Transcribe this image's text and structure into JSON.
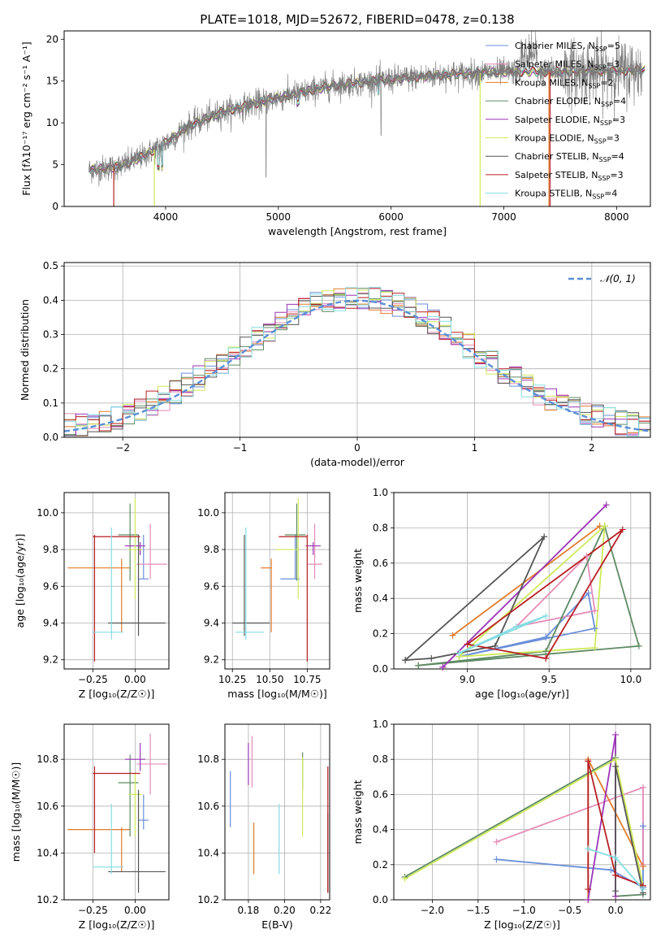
{
  "figure": {
    "title": "PLATE=1018, MJD=52672, FIBERID=0478, z=0.138"
  },
  "colors": {
    "Chabrier MILES": "#6a8fd9",
    "Salpeter MILES": "#e58cb7",
    "Kroupa MILES": "#e07b2c",
    "Chabrier ELODIE": "#5e8a63",
    "Salpeter ELODIE": "#9a35b5",
    "Kroupa ELODIE": "#cfea5a",
    "Chabrier STELIB": "#555555",
    "Salpeter STELIB": "#b81f24",
    "Kroupa STELIB": "#86dde2"
  },
  "chart_data": [
    {
      "id": "spectrum",
      "type": "line",
      "xlabel": "wavelength [Angstrom, rest frame]",
      "ylabel": "Flux [fλ10⁻¹⁷ erg cm⁻² s⁻¹ A⁻¹]",
      "xlim": [
        3100,
        8300
      ],
      "ylim": [
        0,
        21
      ],
      "xticks": [
        4000,
        5000,
        6000,
        7000,
        8000
      ],
      "yticks": [
        0,
        5,
        10,
        15,
        20
      ],
      "legend_position": "top-right",
      "series": [
        {
          "name": "Chabrier MILES",
          "nssp": "5"
        },
        {
          "name": "Salpeter MILES",
          "nssp": "3"
        },
        {
          "name": "Kroupa MILES",
          "nssp": "2"
        },
        {
          "name": "Chabrier ELODIE",
          "nssp": "4"
        },
        {
          "name": "Salpeter ELODIE",
          "nssp": "3"
        },
        {
          "name": "Kroupa ELODIE",
          "nssp": "3"
        },
        {
          "name": "Chabrier STELIB",
          "nssp": "4"
        },
        {
          "name": "Salpeter STELIB",
          "nssp": "3"
        },
        {
          "name": "Kroupa STELIB",
          "nssp": "4"
        }
      ],
      "continuum": {
        "x": [
          3300,
          3600,
          3800,
          4000,
          4200,
          4500,
          5000,
          5500,
          6000,
          6500,
          7000,
          7500,
          8000,
          8250
        ],
        "y": [
          4.3,
          4.8,
          6.0,
          7.6,
          9.6,
          11.3,
          13.0,
          14.5,
          15.2,
          15.8,
          16.1,
          16.1,
          16.2,
          16.3
        ]
      }
    },
    {
      "id": "residuals",
      "type": "histogram",
      "xlabel": "(data-model)/error",
      "ylabel": "Normed distribution",
      "xlim": [
        -2.5,
        2.5
      ],
      "ylim": [
        0,
        0.51
      ],
      "xticks": [
        -2,
        -1,
        0,
        1,
        2
      ],
      "yticks": [
        0.0,
        0.1,
        0.2,
        0.3,
        0.4,
        0.5
      ],
      "legend": {
        "label": "𝒩(0, 1)",
        "position": "top-right"
      },
      "bin_width": 0.1
    },
    {
      "id": "age_vs_z",
      "type": "errorbar",
      "xlabel": "Z [log₁₀(Z/Z☉)]",
      "ylabel": "age  [log₁₀(age/yr)]",
      "xlim": [
        -0.42,
        0.2
      ],
      "ylim": [
        9.15,
        10.11
      ],
      "xticks": [
        -0.25,
        0.0
      ],
      "xtick_labels": [
        "−0.25",
        "0.00"
      ],
      "yticks": [
        9.2,
        9.4,
        9.6,
        9.8,
        10.0
      ],
      "points": [
        {
          "model": "Chabrier MILES",
          "x": 0.05,
          "xerr": [
            0.03,
            0.03
          ],
          "y": 9.64,
          "yerr": [
            0.0,
            0.24
          ]
        },
        {
          "model": "Salpeter MILES",
          "x": 0.09,
          "xerr": [
            0.08,
            0.1
          ],
          "y": 9.72,
          "yerr": [
            0.08,
            0.22
          ]
        },
        {
          "model": "Kroupa MILES",
          "x": -0.08,
          "xerr": [
            0.32,
            0.05
          ],
          "y": 9.7,
          "yerr": [
            0.35,
            0.05
          ]
        },
        {
          "model": "Chabrier ELODIE",
          "x": -0.03,
          "xerr": [
            0.07,
            0.05
          ],
          "y": 9.88,
          "yerr": [
            0.25,
            0.17
          ]
        },
        {
          "model": "Salpeter ELODIE",
          "x": 0.03,
          "xerr": [
            0.09,
            0.03
          ],
          "y": 9.82,
          "yerr": [
            0.05,
            0.02
          ]
        },
        {
          "model": "Kroupa ELODIE",
          "x": 0.0,
          "xerr": [
            0.04,
            0.04
          ],
          "y": 9.8,
          "yerr": [
            0.27,
            0.28
          ]
        },
        {
          "model": "Chabrier STELIB",
          "x": 0.02,
          "xerr": [
            0.18,
            0.16
          ],
          "y": 9.4,
          "yerr": [
            0.07,
            0.48
          ]
        },
        {
          "model": "Salpeter STELIB",
          "x": -0.24,
          "xerr": [
            0.01,
            0.27
          ],
          "y": 9.87,
          "yerr": [
            0.68,
            0.01
          ]
        },
        {
          "model": "Kroupa STELIB",
          "x": -0.14,
          "xerr": [
            0.11,
            0.07
          ],
          "y": 9.35,
          "yerr": [
            0.04,
            0.57
          ]
        }
      ]
    },
    {
      "id": "age_vs_mass",
      "type": "errorbar",
      "xlabel": "mass [log₁₀(M/M☉)]",
      "ylabel": "",
      "xlim": [
        10.2,
        10.9
      ],
      "ylim": [
        9.15,
        10.11
      ],
      "xticks": [
        10.25,
        10.5,
        10.75
      ],
      "yticks": [
        9.2,
        9.4,
        9.6,
        9.8,
        10.0
      ],
      "points": [
        {
          "model": "Chabrier MILES",
          "x": 10.67,
          "xerr": [
            0.1,
            0.03
          ],
          "y": 9.64,
          "yerr": [
            0.0,
            0.24
          ]
        },
        {
          "model": "Salpeter MILES",
          "x": 10.8,
          "xerr": [
            0.05,
            0.05
          ],
          "y": 9.72,
          "yerr": [
            0.08,
            0.22
          ]
        },
        {
          "model": "Kroupa MILES",
          "x": 10.51,
          "xerr": [
            0.07,
            0.0
          ],
          "y": 9.7,
          "yerr": [
            0.35,
            0.05
          ]
        },
        {
          "model": "Chabrier ELODIE",
          "x": 10.68,
          "xerr": [
            0.08,
            0.06
          ],
          "y": 9.88,
          "yerr": [
            0.25,
            0.17
          ]
        },
        {
          "model": "Salpeter ELODIE",
          "x": 10.79,
          "xerr": [
            0.05,
            0.05
          ],
          "y": 9.82,
          "yerr": [
            0.05,
            0.02
          ]
        },
        {
          "model": "Kroupa ELODIE",
          "x": 10.69,
          "xerr": [
            0.15,
            0.0
          ],
          "y": 9.8,
          "yerr": [
            0.27,
            0.28
          ]
        },
        {
          "model": "Chabrier STELIB",
          "x": 10.33,
          "xerr": [
            0.08,
            0.17
          ],
          "y": 9.4,
          "yerr": [
            0.07,
            0.48
          ]
        },
        {
          "model": "Salpeter STELIB",
          "x": 10.75,
          "xerr": [
            0.19,
            0.0
          ],
          "y": 9.87,
          "yerr": [
            0.68,
            0.01
          ]
        },
        {
          "model": "Kroupa STELIB",
          "x": 10.34,
          "xerr": [
            0.07,
            0.12
          ],
          "y": 9.35,
          "yerr": [
            0.04,
            0.57
          ]
        }
      ]
    },
    {
      "id": "weight_vs_age",
      "type": "line",
      "xlabel": "age  [log₁₀(age/yr)]",
      "ylabel": "mass weight",
      "xlim": [
        8.55,
        10.12
      ],
      "ylim": [
        0,
        1.0
      ],
      "xticks": [
        9.0,
        9.5,
        10.0
      ],
      "yticks": [
        0.0,
        0.2,
        0.4,
        0.6,
        0.8,
        1.0
      ],
      "series": [
        {
          "model": "Chabrier MILES",
          "x": [
            8.95,
            9.48,
            9.74,
            9.78,
            8.95
          ],
          "y": [
            0.07,
            0.18,
            0.43,
            0.23,
            0.07
          ]
        },
        {
          "model": "Salpeter MILES",
          "x": [
            9.73,
            9.78,
            9.3,
            9.73
          ],
          "y": [
            0.64,
            0.33,
            0.24,
            0.64
          ]
        },
        {
          "model": "Kroupa MILES",
          "x": [
            8.91,
            9.81
          ],
          "y": [
            0.19,
            0.81
          ]
        },
        {
          "model": "Chabrier ELODIE",
          "x": [
            8.7,
            9.48,
            9.84,
            10.05,
            8.7
          ],
          "y": [
            0.02,
            0.1,
            0.81,
            0.13,
            0.02
          ]
        },
        {
          "model": "Salpeter ELODIE",
          "x": [
            8.85,
            9.85,
            8.85
          ],
          "y": [
            0.01,
            0.93,
            0.01
          ]
        },
        {
          "model": "Kroupa ELODIE",
          "x": [
            8.95,
            9.78,
            9.84,
            8.95
          ],
          "y": [
            0.07,
            0.12,
            0.81,
            0.07
          ]
        },
        {
          "model": "Chabrier STELIB",
          "x": [
            8.62,
            8.78,
            9.17,
            9.47,
            8.62
          ],
          "y": [
            0.05,
            0.06,
            0.13,
            0.75,
            0.05
          ]
        },
        {
          "model": "Salpeter STELIB",
          "x": [
            9.0,
            9.48,
            9.95,
            9.0
          ],
          "y": [
            0.14,
            0.06,
            0.79,
            0.14
          ]
        },
        {
          "model": "Kroupa STELIB",
          "x": [
            8.95,
            9.3,
            9.48,
            8.95
          ],
          "y": [
            0.09,
            0.24,
            0.3,
            0.09
          ]
        }
      ]
    },
    {
      "id": "mass_vs_z",
      "type": "errorbar",
      "xlabel": "Z [log₁₀(Z/Z☉)]",
      "ylabel": "mass [log₁₀(M/M☉)]",
      "xlim": [
        -0.42,
        0.2
      ],
      "ylim": [
        10.2,
        10.95
      ],
      "xticks": [
        -0.25,
        0.0
      ],
      "xtick_labels": [
        "−0.25",
        "0.00"
      ],
      "yticks": [
        10.2,
        10.4,
        10.6,
        10.8
      ],
      "points": [
        {
          "model": "Chabrier MILES",
          "x": 0.05,
          "xerr": [
            0.03,
            0.03
          ],
          "y": 10.54,
          "yerr": [
            0.04,
            0.11
          ]
        },
        {
          "model": "Salpeter MILES",
          "x": 0.09,
          "xerr": [
            0.08,
            0.1
          ],
          "y": 10.78,
          "yerr": [
            0.13,
            0.13
          ]
        },
        {
          "model": "Kroupa MILES",
          "x": -0.08,
          "xerr": [
            0.32,
            0.05
          ],
          "y": 10.5,
          "yerr": [
            0.18,
            0.01
          ]
        },
        {
          "model": "Chabrier ELODIE",
          "x": -0.03,
          "xerr": [
            0.07,
            0.05
          ],
          "y": 10.7,
          "yerr": [
            0.23,
            0.12
          ]
        },
        {
          "model": "Salpeter ELODIE",
          "x": 0.03,
          "xerr": [
            0.09,
            0.03
          ],
          "y": 10.8,
          "yerr": [
            0.05,
            0.07
          ]
        },
        {
          "model": "Kroupa ELODIE",
          "x": 0.0,
          "xerr": [
            0.04,
            0.04
          ],
          "y": 10.65,
          "yerr": [
            0.18,
            0.09
          ]
        },
        {
          "model": "Chabrier STELIB",
          "x": 0.02,
          "xerr": [
            0.18,
            0.16
          ],
          "y": 10.32,
          "yerr": [
            0.09,
            0.35
          ]
        },
        {
          "model": "Salpeter STELIB",
          "x": -0.24,
          "xerr": [
            0.01,
            0.27
          ],
          "y": 10.74,
          "yerr": [
            0.34,
            0.03
          ]
        },
        {
          "model": "Kroupa STELIB",
          "x": -0.14,
          "xerr": [
            0.11,
            0.07
          ],
          "y": 10.34,
          "yerr": [
            0.03,
            0.27
          ]
        }
      ]
    },
    {
      "id": "mass_vs_ebv",
      "type": "errorbar",
      "xlabel": "E(B-V)",
      "ylabel": "",
      "xlim": [
        0.167,
        0.225
      ],
      "ylim": [
        10.2,
        10.95
      ],
      "xticks": [
        0.18,
        0.2,
        0.22
      ],
      "yticks": [
        10.2,
        10.4,
        10.6,
        10.8
      ],
      "points": [
        {
          "model": "Chabrier MILES",
          "x": 0.17,
          "y": 10.63,
          "yerr": [
            0.12,
            0.12
          ]
        },
        {
          "model": "Salpeter MILES",
          "x": 0.182,
          "y": 10.79,
          "yerr": [
            0.11,
            0.11
          ]
        },
        {
          "model": "Kroupa MILES",
          "x": 0.183,
          "y": 10.42,
          "yerr": [
            0.11,
            0.11
          ]
        },
        {
          "model": "Chabrier ELODIE",
          "x": 0.21,
          "y": 10.75,
          "yerr": [
            0.08,
            0.08
          ]
        },
        {
          "model": "Salpeter ELODIE",
          "x": 0.18,
          "y": 10.78,
          "yerr": [
            0.09,
            0.09
          ]
        },
        {
          "model": "Kroupa ELODIE",
          "x": 0.21,
          "y": 10.64,
          "yerr": [
            0.17,
            0.17
          ]
        },
        {
          "model": "Chabrier STELIB",
          "x": 0.224,
          "y": 10.4,
          "yerr": [
            0.17,
            0.17
          ]
        },
        {
          "model": "Salpeter STELIB",
          "x": 0.224,
          "y": 10.5,
          "yerr": [
            0.27,
            0.27
          ]
        },
        {
          "model": "Kroupa STELIB",
          "x": 0.197,
          "y": 10.46,
          "yerr": [
            0.15,
            0.15
          ]
        }
      ]
    },
    {
      "id": "weight_vs_z",
      "type": "line",
      "xlabel": "Z [log₁₀(Z/Z☉)]",
      "ylabel": "mass weight",
      "xlim": [
        -2.42,
        0.38
      ],
      "ylim": [
        0,
        1.0
      ],
      "xticks": [
        -2.0,
        -1.5,
        -1.0,
        -0.5,
        0.0
      ],
      "xtick_labels": [
        "−2.0",
        "−1.5",
        "−1.0",
        "−0.5",
        "0.0"
      ],
      "yticks": [
        0.0,
        0.2,
        0.4,
        0.6,
        0.8,
        1.0
      ],
      "series": [
        {
          "model": "Chabrier MILES",
          "x": [
            -1.3,
            -0.05,
            0.3,
            0.3
          ],
          "y": [
            0.23,
            0.17,
            0.07,
            0.42
          ]
        },
        {
          "model": "Salpeter MILES",
          "x": [
            -1.3,
            0.3,
            0.3
          ],
          "y": [
            0.33,
            0.64,
            0.2
          ]
        },
        {
          "model": "Kroupa MILES",
          "x": [
            -0.3,
            -0.3,
            0.3
          ],
          "y": [
            0.0,
            0.8,
            0.19
          ]
        },
        {
          "model": "Chabrier ELODIE",
          "x": [
            -2.3,
            0.0,
            0.0,
            0.3
          ],
          "y": [
            0.13,
            0.81,
            0.02,
            0.03
          ]
        },
        {
          "model": "Salpeter ELODIE",
          "x": [
            -0.3,
            0.0,
            0.0
          ],
          "y": [
            0.0,
            0.94,
            0.02
          ]
        },
        {
          "model": "Kroupa ELODIE",
          "x": [
            -2.3,
            0.0,
            0.3
          ],
          "y": [
            0.12,
            0.8,
            0.08
          ]
        },
        {
          "model": "Chabrier STELIB",
          "x": [
            0.0,
            0.0,
            0.3
          ],
          "y": [
            0.05,
            0.76,
            0.04
          ]
        },
        {
          "model": "Salpeter STELIB",
          "x": [
            -0.3,
            -0.3,
            0.0,
            0.3
          ],
          "y": [
            0.06,
            0.79,
            0.14,
            0.08
          ]
        },
        {
          "model": "Kroupa STELIB",
          "x": [
            -0.3,
            0.0,
            0.3
          ],
          "y": [
            0.29,
            0.24,
            0.06
          ]
        }
      ]
    }
  ]
}
